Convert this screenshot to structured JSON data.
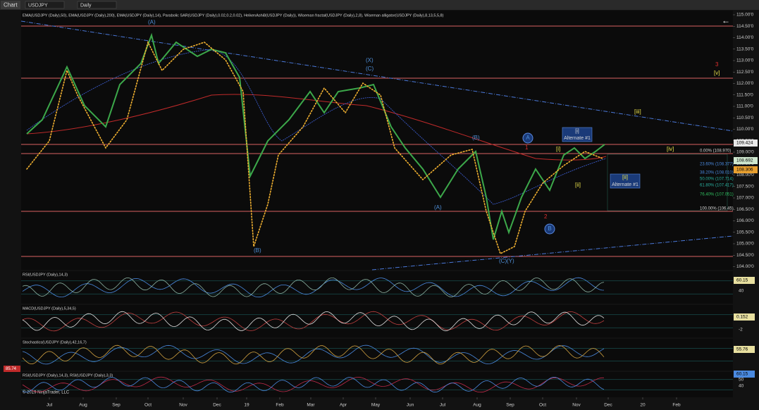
{
  "toolbar": {
    "title": "Chart",
    "symbol": "USDJPY",
    "interval": "Daily"
  },
  "main": {
    "indicators": "EMA(USDJPY (Daily),50), EMA(USDJPY (Daily),200), EMA(USDJPY (Daily),14), Parabolic SAR(USDJPY (Daily),0.02,0.2,0.02), HeikenAshi8(USDJPY (Daily)), Wiseman fractal(USDJPY (Daily),2,8), Wiseman alligator(USDJPY (Daily),8,13,5,5,8)",
    "price_labels": [
      "115.00'0",
      "114.50'0",
      "114.00'0",
      "113.50'0",
      "113.00'0",
      "112.50'0",
      "112.00'0",
      "111.50'0",
      "111.00'0",
      "110.50'0",
      "110.00'0",
      "109.50'0",
      "109.00'0",
      "108.50'0",
      "108.00'0",
      "107.50'0",
      "107.00'0",
      "106.50'0",
      "106.00'0",
      "105.50'0",
      "105.00'0",
      "104.50'0",
      "104.00'0"
    ],
    "price_boxes": [
      "109.424",
      "108.692",
      "108.306"
    ],
    "fib_labels": [
      "0.00% (108.970)",
      "23.60% (108.377)",
      "38.20% (108.010)",
      "50.00% (107.714)",
      "61.80% (107.417)",
      "76.40% (107.051)",
      "100.00% (106.45)"
    ],
    "waves": [
      "(A)",
      "(B)",
      "(X)",
      "(C)",
      "(B)",
      "(A)",
      "(C)",
      "(Y)",
      "A",
      "B",
      "1",
      "2",
      "[i]",
      "Alternate #1",
      "[ii]",
      "Alternate #1",
      "[i]",
      "[ii]",
      "[iii]",
      "[iv]",
      "3",
      "[v]"
    ]
  },
  "panels": [
    {
      "title": "RSI(USDJPY (Daily),14,3)",
      "value": "60.15",
      "ticks": [
        "40"
      ]
    },
    {
      "title": "MACD(USDJPY (Daily),5,34,5)",
      "value": "0.152",
      "ticks": [
        "0",
        "-2"
      ]
    },
    {
      "title": "Stochastics(USDJPY (Daily),42,16,7)",
      "value": "55.76",
      "ticks": []
    },
    {
      "title": "RSI(USDJPY (Daily),14,3), RSI(USDJPY (Daily),3,3)",
      "value": "60.15",
      "ticks": [
        "50",
        "40"
      ],
      "left_value": "85.74"
    }
  ],
  "x_labels": [
    "Jul",
    "Aug",
    "Sep",
    "Oct",
    "Nov",
    "Dec",
    "19",
    "Feb",
    "Mar",
    "Apr",
    "May",
    "Jun",
    "Jul",
    "Aug",
    "Sep",
    "Oct",
    "Nov",
    "Dec",
    "20",
    "Feb"
  ],
  "copyright": "© 2019 NinjaTrader, LLC"
}
